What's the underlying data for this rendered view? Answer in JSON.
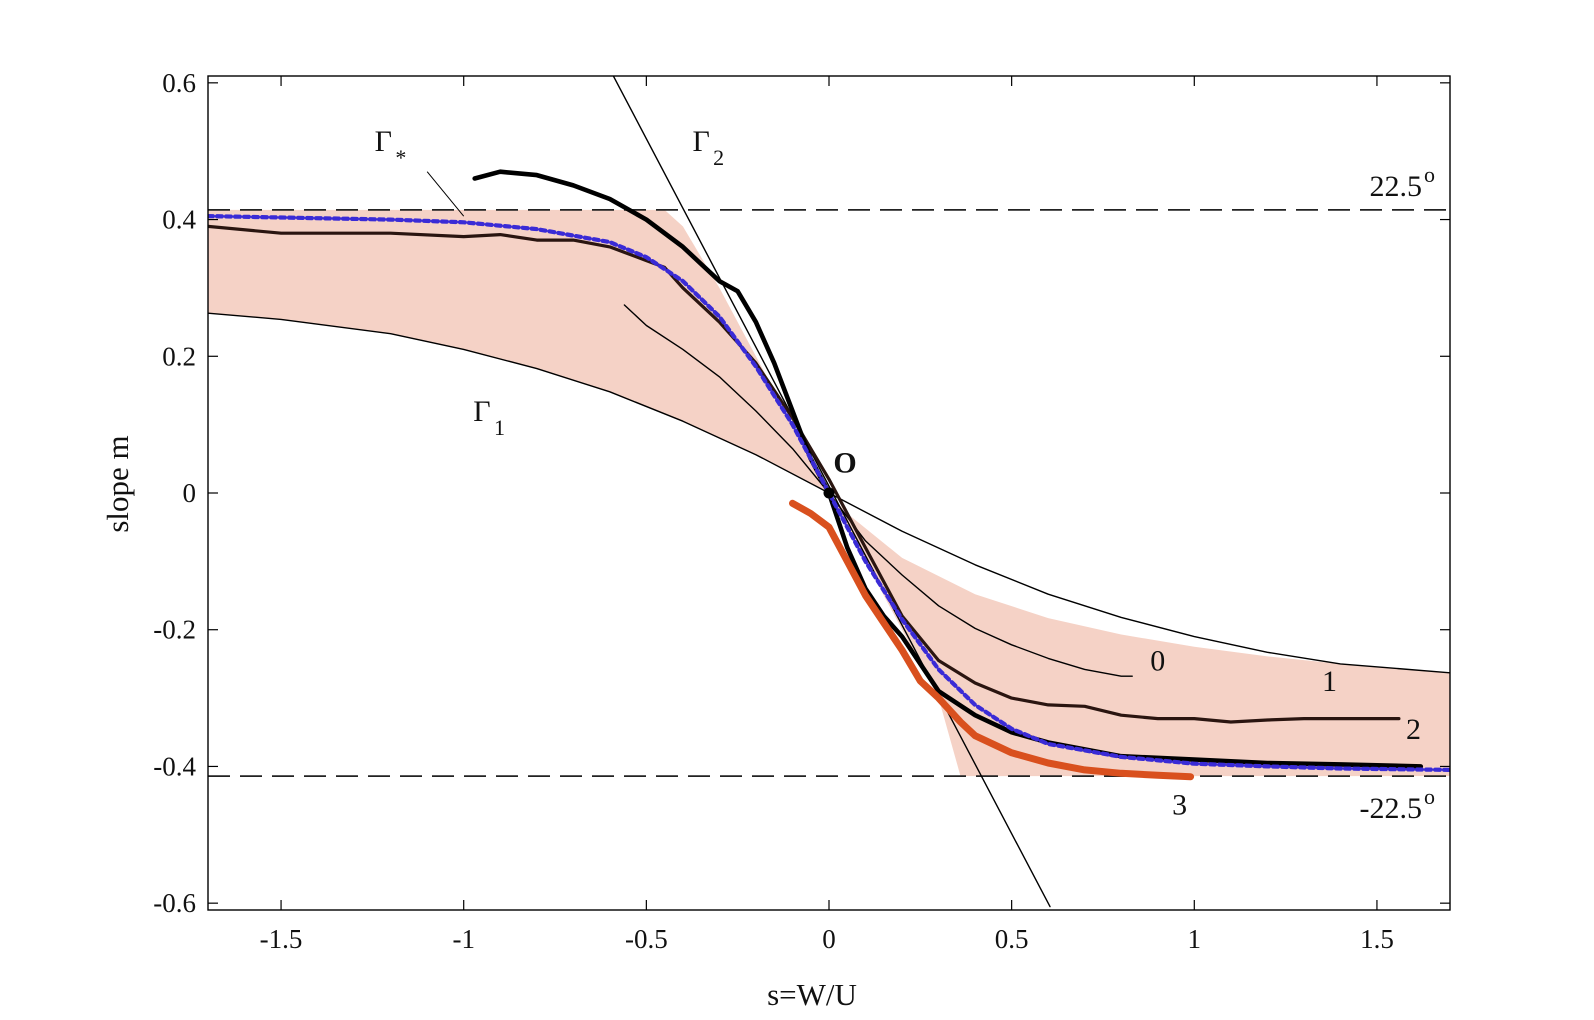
{
  "chart_data": {
    "type": "line",
    "title": "",
    "xlabel": "s=W/U",
    "ylabel": "slope m",
    "xlim": [
      -1.7,
      1.7
    ],
    "ylim": [
      -0.61,
      0.61
    ],
    "grid": false,
    "xticks": [
      -1.5,
      -1,
      -0.5,
      0,
      0.5,
      1,
      1.5
    ],
    "xtick_labels": [
      "-1.5",
      "-1",
      "-0.5",
      "0",
      "0.5",
      "1",
      "1.5"
    ],
    "yticks": [
      0.6,
      0.4,
      0.2,
      0,
      -0.2,
      -0.4,
      -0.6
    ],
    "ytick_labels": [
      "0.6",
      "0.4",
      "0.2",
      "0",
      "-0.2",
      "-0.4",
      "-0.6"
    ],
    "colors": {
      "shaded_region": "#f5d2c6",
      "gamma_star": "#3a2bd6",
      "curve_3": "#d9501e",
      "curve_dark": "#2a1510",
      "black": "#000000"
    },
    "reference_lines": [
      {
        "name": "upper-bound",
        "y": 0.4142,
        "style": "dashed",
        "label": "22.5",
        "label_sup": "o"
      },
      {
        "name": "lower-bound",
        "y": -0.4142,
        "style": "dashed",
        "label": "-22.5",
        "label_sup": "o"
      }
    ],
    "shaded_region": {
      "description": "region between Gamma_1, Gamma_2 and the 22.5 degree lines",
      "upper": [
        [
          -1.7,
          0.4142
        ],
        [
          -0.45,
          0.4142
        ],
        [
          -0.4,
          0.39
        ],
        [
          -0.3,
          0.3
        ],
        [
          -0.2,
          0.2
        ],
        [
          -0.1,
          0.1
        ],
        [
          -0.05,
          0.05
        ],
        [
          0,
          0
        ],
        [
          0.05,
          -0.03
        ],
        [
          0.2,
          -0.095
        ],
        [
          0.4,
          -0.148
        ],
        [
          0.6,
          -0.183
        ],
        [
          0.8,
          -0.207
        ],
        [
          1.0,
          -0.225
        ],
        [
          1.2,
          -0.239
        ],
        [
          1.4,
          -0.25
        ],
        [
          1.7,
          -0.263
        ]
      ],
      "lower": [
        [
          -1.7,
          0.263
        ],
        [
          -1.5,
          0.254
        ],
        [
          -1.2,
          0.233
        ],
        [
          -1.0,
          0.21
        ],
        [
          -0.8,
          0.182
        ],
        [
          -0.6,
          0.148
        ],
        [
          -0.4,
          0.105
        ],
        [
          -0.2,
          0.056
        ],
        [
          -0.1,
          0.029
        ],
        [
          -0.05,
          0.015
        ],
        [
          0,
          0
        ],
        [
          0.05,
          -0.05
        ],
        [
          0.1,
          -0.1
        ],
        [
          0.2,
          -0.2
        ],
        [
          0.3,
          -0.3
        ],
        [
          0.36,
          -0.4142
        ],
        [
          1.7,
          -0.4142
        ]
      ]
    },
    "series": [
      {
        "name": "Gamma_1",
        "style": "thin",
        "x": [
          -1.7,
          -1.5,
          -1.2,
          -1.0,
          -0.8,
          -0.6,
          -0.4,
          -0.2,
          0,
          0.2,
          0.4,
          0.6,
          0.8,
          1.0,
          1.2,
          1.4,
          1.7
        ],
        "y": [
          0.263,
          0.254,
          0.233,
          0.21,
          0.182,
          0.148,
          0.105,
          0.056,
          0,
          -0.056,
          -0.105,
          -0.148,
          -0.182,
          -0.21,
          -0.233,
          -0.25,
          -0.263
        ]
      },
      {
        "name": "Gamma_2",
        "style": "thin",
        "x": [
          -0.6,
          0.605
        ],
        "y": [
          0.62,
          -0.605
        ]
      },
      {
        "name": "curve-0",
        "style": "thin",
        "x": [
          -0.56,
          -0.5,
          -0.4,
          -0.3,
          -0.2,
          -0.1,
          0,
          0.1,
          0.2,
          0.3,
          0.4,
          0.5,
          0.6,
          0.7,
          0.8,
          0.83
        ],
        "y": [
          0.275,
          0.245,
          0.21,
          0.17,
          0.12,
          0.065,
          0,
          -0.07,
          -0.12,
          -0.165,
          -0.198,
          -0.222,
          -0.242,
          -0.258,
          -0.268,
          -0.268
        ]
      },
      {
        "name": "curve-1",
        "style": "medium",
        "x": [
          -1.7,
          -1.5,
          -1.2,
          -1.0,
          -0.9,
          -0.8,
          -0.7,
          -0.6,
          -0.5,
          -0.45,
          -0.4,
          -0.3,
          -0.2,
          -0.1,
          0,
          0.1,
          0.2,
          0.3,
          0.4,
          0.5,
          0.6,
          0.7,
          0.8,
          0.9,
          1.0,
          1.1,
          1.2,
          1.3,
          1.4,
          1.5,
          1.56
        ],
        "y": [
          0.39,
          0.38,
          0.38,
          0.375,
          0.378,
          0.37,
          0.37,
          0.36,
          0.34,
          0.33,
          0.3,
          0.25,
          0.19,
          0.11,
          0.02,
          -0.08,
          -0.18,
          -0.245,
          -0.278,
          -0.3,
          -0.31,
          -0.312,
          -0.325,
          -0.33,
          -0.33,
          -0.335,
          -0.332,
          -0.33,
          -0.33,
          -0.33,
          -0.33
        ]
      },
      {
        "name": "curve-2",
        "style": "thick",
        "x": [
          -0.97,
          -0.9,
          -0.8,
          -0.7,
          -0.6,
          -0.5,
          -0.4,
          -0.35,
          -0.3,
          -0.25,
          -0.2,
          -0.15,
          -0.1,
          -0.05,
          0,
          0.05,
          0.1,
          0.15,
          0.2,
          0.3,
          0.4,
          0.5,
          0.6,
          0.8,
          1.0,
          1.2,
          1.4,
          1.62
        ],
        "y": [
          0.46,
          0.47,
          0.465,
          0.45,
          0.43,
          0.4,
          0.36,
          0.335,
          0.31,
          0.295,
          0.25,
          0.19,
          0.12,
          0.05,
          0.0,
          -0.08,
          -0.14,
          -0.18,
          -0.21,
          -0.29,
          -0.325,
          -0.35,
          -0.365,
          -0.385,
          -0.39,
          -0.395,
          -0.397,
          -0.4
        ]
      },
      {
        "name": "curve-3",
        "style": "thick-orange",
        "x": [
          -0.1,
          -0.05,
          0,
          0.05,
          0.1,
          0.15,
          0.2,
          0.25,
          0.3,
          0.36,
          0.4,
          0.5,
          0.6,
          0.7,
          0.8,
          0.9,
          0.99
        ],
        "y": [
          -0.015,
          -0.03,
          -0.05,
          -0.1,
          -0.15,
          -0.19,
          -0.23,
          -0.275,
          -0.3,
          -0.335,
          -0.355,
          -0.38,
          -0.395,
          -0.405,
          -0.41,
          -0.413,
          -0.415
        ]
      },
      {
        "name": "Gamma_star",
        "style": "dotted-blue",
        "x": [
          -1.7,
          -1.5,
          -1.2,
          -1.0,
          -0.8,
          -0.6,
          -0.5,
          -0.4,
          -0.3,
          -0.2,
          -0.1,
          0,
          0.1,
          0.2,
          0.3,
          0.4,
          0.5,
          0.6,
          0.8,
          1.0,
          1.2,
          1.4,
          1.7
        ],
        "y": [
          0.405,
          0.403,
          0.4,
          0.396,
          0.386,
          0.367,
          0.345,
          0.31,
          0.258,
          0.185,
          0.1,
          0.0,
          -0.1,
          -0.185,
          -0.258,
          -0.31,
          -0.345,
          -0.367,
          -0.386,
          -0.396,
          -0.4,
          -0.403,
          -0.405
        ]
      }
    ],
    "annotations": [
      {
        "name": "gamma-star-label",
        "text": "Γ",
        "sub": "*",
        "x": -1.22,
        "y": 0.5
      },
      {
        "name": "gamma-2-label",
        "text": "Γ",
        "sub": "2",
        "x": -0.35,
        "y": 0.5
      },
      {
        "name": "gamma-1-label",
        "text": "Γ",
        "sub": "1",
        "x": -0.95,
        "y": 0.105
      },
      {
        "name": "origin-label",
        "text": "O",
        "x": 0.0,
        "y": 0.03
      },
      {
        "name": "curve-0-label",
        "text": "0",
        "x": 0.9,
        "y": -0.26
      },
      {
        "name": "curve-1-label",
        "text": "1",
        "x": 1.37,
        "y": -0.29
      },
      {
        "name": "curve-2-label",
        "text": "2",
        "x": 1.6,
        "y": -0.36
      },
      {
        "name": "curve-3-label",
        "text": "3",
        "x": 0.96,
        "y": -0.47
      }
    ]
  }
}
